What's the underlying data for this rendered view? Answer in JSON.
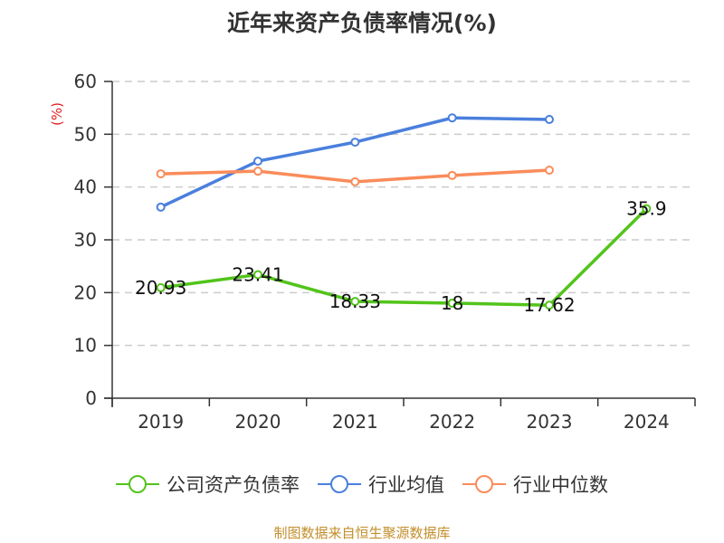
{
  "chart_data": {
    "type": "line",
    "title": "近年来资产负债率情况(%)",
    "xlabel": "",
    "ylabel": "(%)",
    "ylim": [
      0,
      60
    ],
    "yticks": [
      0,
      10,
      20,
      30,
      40,
      50,
      60
    ],
    "grid": true,
    "legend_position": "bottom",
    "categories": [
      "2019",
      "2020",
      "2021",
      "2022",
      "2023",
      "2024"
    ],
    "series": [
      {
        "name": "公司资产负债率",
        "color": "#52c41a",
        "values": [
          20.93,
          23.41,
          18.33,
          18,
          17.62,
          35.9
        ],
        "labels": [
          "20.93",
          "23.41",
          "18.33",
          "18",
          "17.62",
          "35.9"
        ]
      },
      {
        "name": "行业均值",
        "color": "#4a7fdd",
        "values": [
          36.2,
          44.9,
          48.5,
          53.1,
          52.8,
          null
        ]
      },
      {
        "name": "行业中位数",
        "color": "#fa8c5a",
        "values": [
          42.5,
          43.0,
          41.0,
          42.2,
          43.2,
          null
        ]
      }
    ]
  },
  "title": "近年来资产负债率情况(%)",
  "y_axis_unit": "(%)",
  "legend": [
    {
      "label": "公司资产负债率",
      "color": "#52c41a"
    },
    {
      "label": "行业均值",
      "color": "#4a7fdd"
    },
    {
      "label": "行业中位数",
      "color": "#fa8c5a"
    }
  ],
  "source_note": "制图数据来自恒生聚源数据库"
}
